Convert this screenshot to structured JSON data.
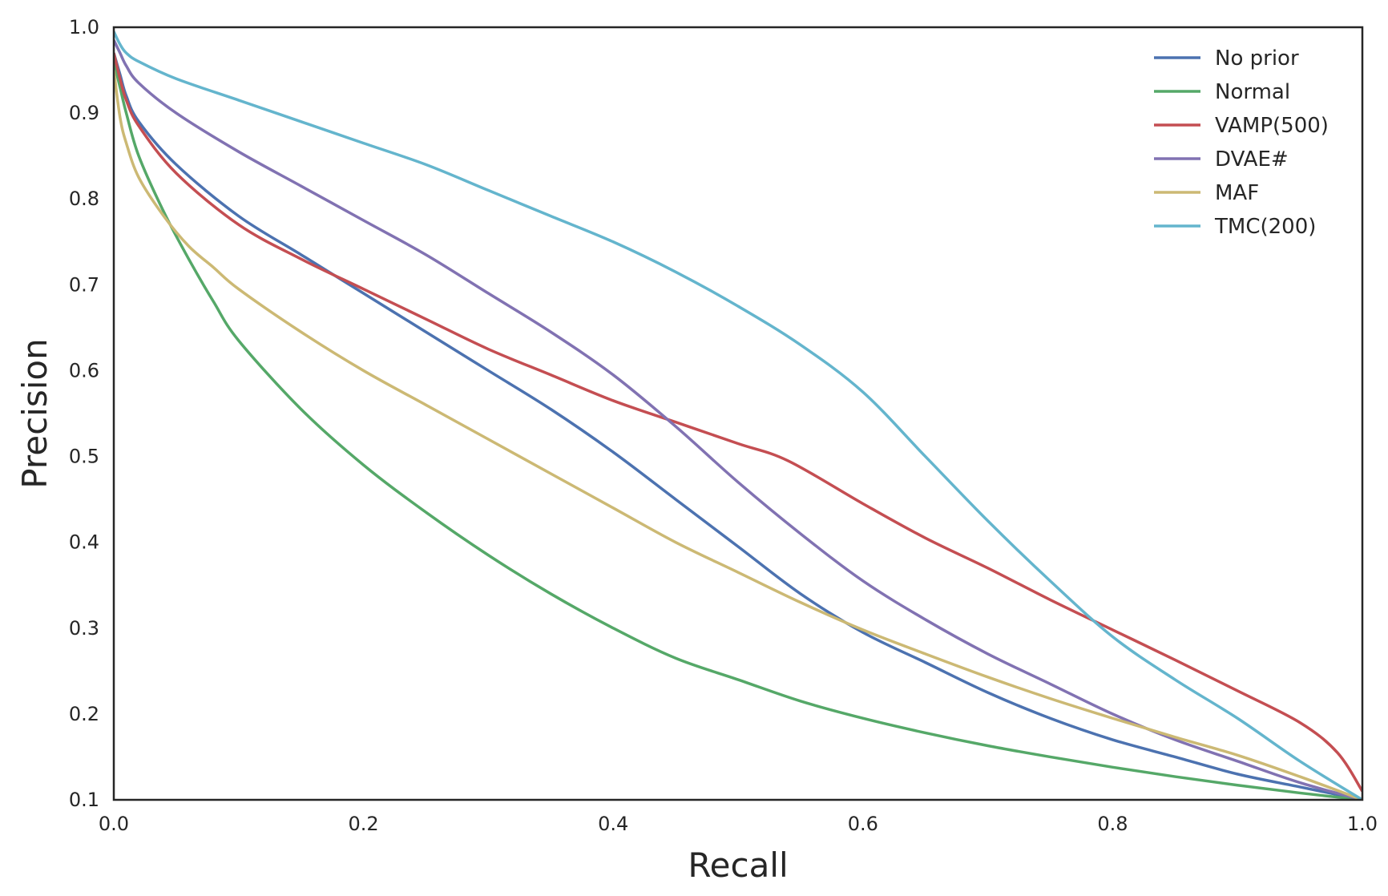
{
  "chart_data": {
    "type": "line",
    "title": "",
    "xlabel": "Recall",
    "ylabel": "Precision",
    "xlim": [
      0.0,
      1.0
    ],
    "ylim": [
      0.1,
      1.0
    ],
    "x_ticks": [
      "0.0",
      "0.2",
      "0.4",
      "0.6",
      "0.8",
      "1.0"
    ],
    "y_ticks": [
      "0.1",
      "0.2",
      "0.3",
      "0.4",
      "0.5",
      "0.6",
      "0.7",
      "0.8",
      "0.9",
      "1.0"
    ],
    "grid": false,
    "legend_position": "top-right",
    "series": [
      {
        "name": "No prior",
        "color": "#4c72b0",
        "x": [
          0.0,
          0.005,
          0.01,
          0.02,
          0.05,
          0.1,
          0.15,
          0.2,
          0.25,
          0.3,
          0.35,
          0.4,
          0.45,
          0.5,
          0.55,
          0.6,
          0.65,
          0.7,
          0.75,
          0.8,
          0.85,
          0.9,
          0.95,
          1.0
        ],
        "y": [
          0.97,
          0.945,
          0.92,
          0.89,
          0.84,
          0.78,
          0.735,
          0.69,
          0.645,
          0.6,
          0.555,
          0.505,
          0.45,
          0.395,
          0.34,
          0.295,
          0.26,
          0.225,
          0.195,
          0.17,
          0.15,
          0.13,
          0.115,
          0.1
        ]
      },
      {
        "name": "Normal",
        "color": "#55a868",
        "x": [
          0.0,
          0.005,
          0.01,
          0.02,
          0.04,
          0.06,
          0.08,
          0.1,
          0.15,
          0.2,
          0.25,
          0.3,
          0.35,
          0.4,
          0.45,
          0.5,
          0.55,
          0.6,
          0.65,
          0.7,
          0.75,
          0.8,
          0.85,
          0.9,
          0.95,
          1.0
        ],
        "y": [
          0.96,
          0.93,
          0.9,
          0.85,
          0.785,
          0.73,
          0.68,
          0.635,
          0.555,
          0.49,
          0.435,
          0.385,
          0.34,
          0.3,
          0.265,
          0.24,
          0.215,
          0.195,
          0.178,
          0.163,
          0.15,
          0.138,
          0.127,
          0.117,
          0.108,
          0.1
        ]
      },
      {
        "name": "VAMP(500)",
        "color": "#c44e52",
        "x": [
          0.0,
          0.005,
          0.01,
          0.02,
          0.05,
          0.1,
          0.15,
          0.2,
          0.25,
          0.3,
          0.35,
          0.4,
          0.45,
          0.5,
          0.54,
          0.6,
          0.65,
          0.7,
          0.75,
          0.8,
          0.85,
          0.9,
          0.95,
          0.98,
          1.0
        ],
        "y": [
          0.97,
          0.94,
          0.915,
          0.885,
          0.83,
          0.77,
          0.73,
          0.695,
          0.66,
          0.625,
          0.595,
          0.565,
          0.54,
          0.515,
          0.495,
          0.445,
          0.405,
          0.37,
          0.333,
          0.298,
          0.263,
          0.227,
          0.19,
          0.155,
          0.11
        ]
      },
      {
        "name": "DVAE#",
        "color": "#8172b2",
        "x": [
          0.0,
          0.005,
          0.01,
          0.02,
          0.05,
          0.1,
          0.15,
          0.2,
          0.25,
          0.3,
          0.35,
          0.4,
          0.45,
          0.5,
          0.55,
          0.6,
          0.65,
          0.7,
          0.75,
          0.8,
          0.85,
          0.9,
          0.95,
          1.0
        ],
        "y": [
          0.985,
          0.97,
          0.955,
          0.935,
          0.9,
          0.855,
          0.815,
          0.775,
          0.735,
          0.69,
          0.645,
          0.595,
          0.535,
          0.47,
          0.41,
          0.355,
          0.31,
          0.27,
          0.235,
          0.2,
          0.17,
          0.145,
          0.12,
          0.1
        ]
      },
      {
        "name": "MAF",
        "color": "#ccb974",
        "x": [
          0.0,
          0.005,
          0.01,
          0.02,
          0.04,
          0.06,
          0.08,
          0.1,
          0.15,
          0.2,
          0.25,
          0.3,
          0.35,
          0.4,
          0.45,
          0.5,
          0.55,
          0.6,
          0.65,
          0.7,
          0.75,
          0.8,
          0.85,
          0.9,
          0.95,
          1.0
        ],
        "y": [
          0.95,
          0.895,
          0.865,
          0.825,
          0.78,
          0.745,
          0.72,
          0.695,
          0.645,
          0.6,
          0.56,
          0.52,
          0.48,
          0.44,
          0.4,
          0.365,
          0.33,
          0.298,
          0.27,
          0.243,
          0.218,
          0.195,
          0.173,
          0.152,
          0.127,
          0.1
        ]
      },
      {
        "name": "TMC(200)",
        "color": "#64b5cd",
        "x": [
          0.0,
          0.005,
          0.01,
          0.02,
          0.05,
          0.1,
          0.15,
          0.2,
          0.25,
          0.3,
          0.35,
          0.4,
          0.45,
          0.5,
          0.55,
          0.6,
          0.65,
          0.7,
          0.75,
          0.8,
          0.85,
          0.9,
          0.95,
          1.0
        ],
        "y": [
          0.995,
          0.98,
          0.97,
          0.96,
          0.94,
          0.915,
          0.89,
          0.865,
          0.84,
          0.81,
          0.78,
          0.75,
          0.715,
          0.675,
          0.63,
          0.575,
          0.5,
          0.425,
          0.355,
          0.29,
          0.24,
          0.195,
          0.145,
          0.1
        ]
      }
    ]
  }
}
